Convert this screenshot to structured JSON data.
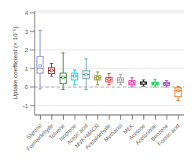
{
  "chart_data": {
    "type": "box",
    "ylabel": "Uptake coefficient (× 10⁻⁵)",
    "ylim": [
      -1.5,
      4.1
    ],
    "yticks": [
      -1,
      0,
      1,
      2,
      3,
      4
    ],
    "grid": true,
    "categories": [
      "Styrene",
      "Formaldehyde",
      "Toluene",
      "Isoprene",
      "Acetic acid",
      "MVK+MACR",
      "Acetaldehyde",
      "Methanol",
      "MEK",
      "Acetone",
      "Acetonitrile",
      "Benzene",
      "Formic acid"
    ],
    "boxes": [
      {
        "q1": 0.75,
        "median": 1.0,
        "q3": 1.65,
        "whislo": -0.1,
        "whishi": 3.05,
        "mean": 1.15
      },
      {
        "q1": 0.72,
        "median": 0.9,
        "q3": 1.05,
        "whislo": 0.58,
        "whishi": 1.28,
        "mean": 0.9
      },
      {
        "q1": 0.18,
        "median": 0.52,
        "q3": 0.75,
        "whislo": -0.12,
        "whishi": 1.85,
        "mean": 0.52
      },
      {
        "q1": 0.38,
        "median": 0.6,
        "q3": 0.75,
        "whislo": 0.12,
        "whishi": 0.92,
        "mean": 0.6
      },
      {
        "q1": 0.48,
        "median": 0.68,
        "q3": 0.88,
        "whislo": -0.12,
        "whishi": 1.52,
        "mean": 0.68
      },
      {
        "q1": 0.38,
        "median": 0.5,
        "q3": 0.62,
        "whislo": 0.12,
        "whishi": 0.82,
        "mean": 0.5
      },
      {
        "q1": 0.28,
        "median": 0.4,
        "q3": 0.52,
        "whislo": 0.12,
        "whishi": 0.72,
        "mean": 0.4
      },
      {
        "q1": 0.26,
        "median": 0.38,
        "q3": 0.5,
        "whislo": 0.12,
        "whishi": 0.68,
        "mean": 0.38
      },
      {
        "q1": 0.12,
        "median": 0.22,
        "q3": 0.34,
        "whislo": 0.0,
        "whishi": 0.5,
        "mean": 0.24
      },
      {
        "q1": 0.15,
        "median": 0.22,
        "q3": 0.28,
        "whislo": 0.06,
        "whishi": 0.38,
        "mean": 0.22
      },
      {
        "q1": 0.12,
        "median": 0.19,
        "q3": 0.27,
        "whislo": 0.0,
        "whishi": 0.42,
        "mean": 0.19
      },
      {
        "q1": 0.1,
        "median": 0.18,
        "q3": 0.25,
        "whislo": 0.0,
        "whishi": 0.34,
        "mean": 0.18
      },
      {
        "q1": -0.52,
        "median": -0.2,
        "q3": -0.05,
        "whislo": -0.72,
        "whishi": 0.04,
        "mean": -0.2
      }
    ],
    "colors": [
      "#8888cc",
      "#8b3030",
      "#3a7a3a",
      "#00cccc",
      "#5599aa",
      "#888820",
      "#dd3333",
      "#999999",
      "#ee22aa",
      "#222222",
      "#00cc44",
      "#9933cc",
      "#ee6600"
    ],
    "zero_line": {
      "y": 0,
      "color": "#999999"
    }
  }
}
